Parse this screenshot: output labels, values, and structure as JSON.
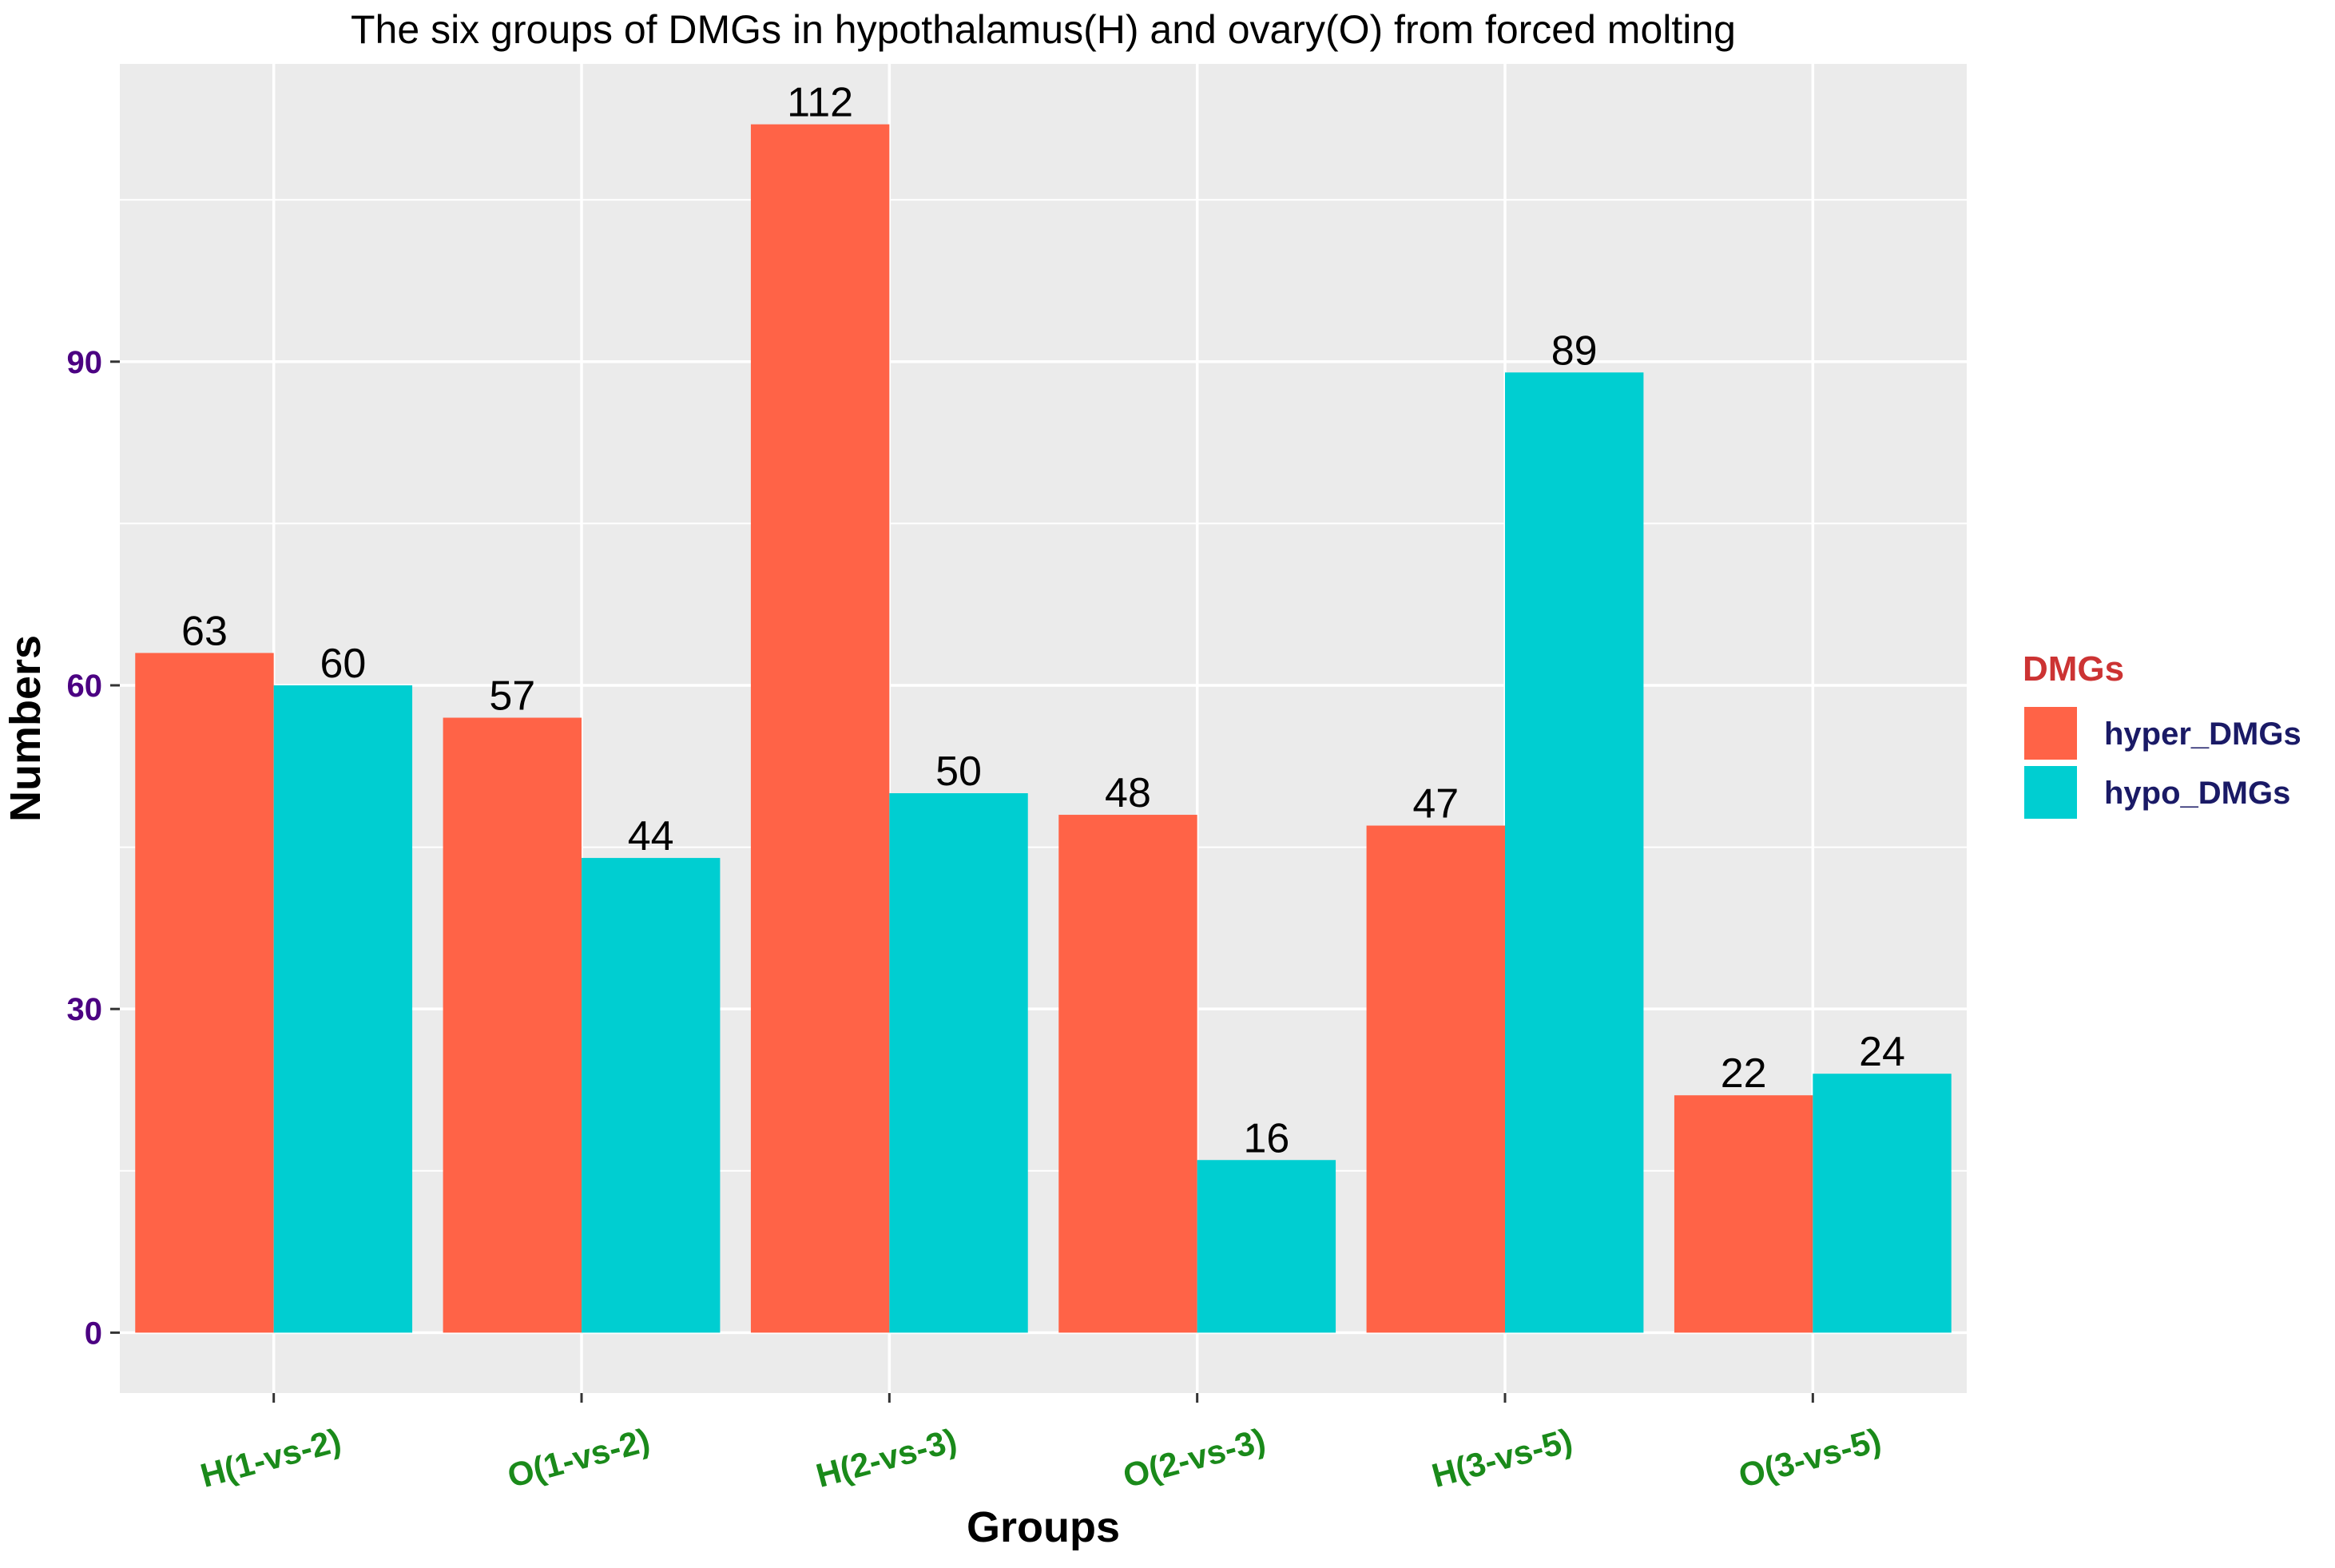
{
  "chart_data": {
    "type": "bar",
    "title": "The six groups of DMGs in hypothalamus(H) and ovary(O) from forced molting",
    "xlabel": "Groups",
    "ylabel": "Numbers",
    "categories": [
      "H(1-vs-2)",
      "O(1-vs-2)",
      "H(2-vs-3)",
      "O(2-vs-3)",
      "H(3-vs-5)",
      "O(3-vs-5)"
    ],
    "series": [
      {
        "name": "hyper_DMGs",
        "color": "#ff6347",
        "values": [
          63,
          57,
          112,
          48,
          47,
          22
        ]
      },
      {
        "name": "hypo_DMGs",
        "color": "#00ced1",
        "values": [
          60,
          44,
          50,
          16,
          89,
          24
        ]
      }
    ],
    "yticks": [
      0,
      30,
      60,
      90
    ],
    "ylim": [
      -5.6,
      117.6
    ],
    "grid": true,
    "legend": {
      "title": "DMGs",
      "placement": "right"
    },
    "colors": {
      "panel_background": "#ebebeb",
      "grid": "#ffffff",
      "ytick_text": "#4b0082",
      "xtick_text": "#1a8a1a",
      "legend_title": "#cc3333",
      "legend_text": "#1a1a66"
    }
  }
}
